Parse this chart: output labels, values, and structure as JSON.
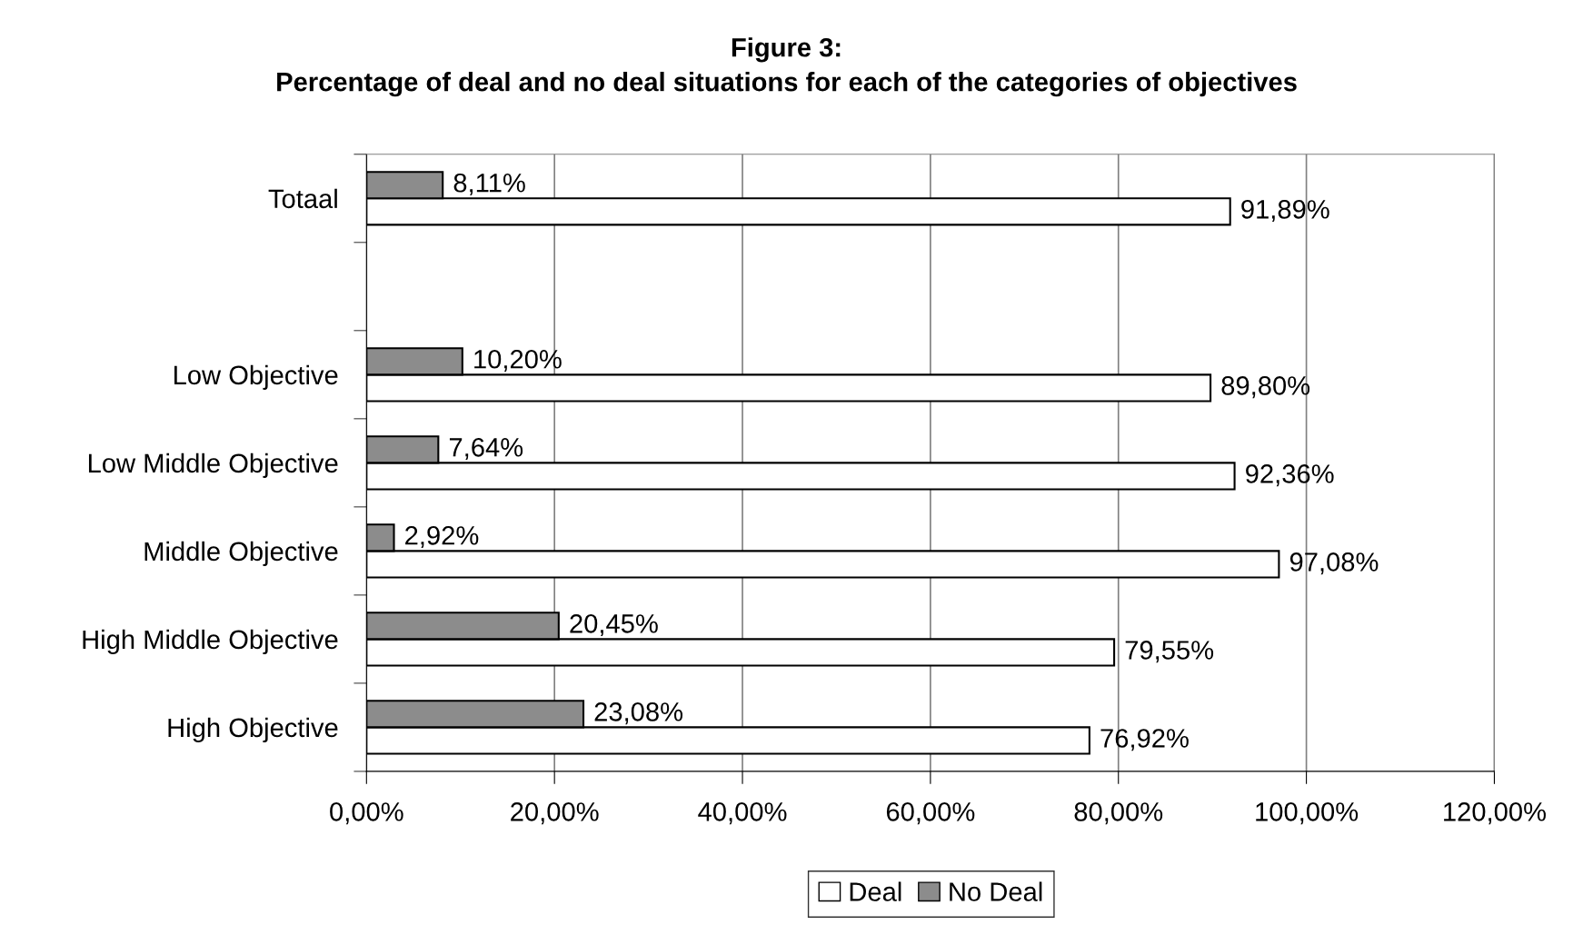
{
  "chart_data": {
    "type": "bar",
    "orientation": "horizontal",
    "title": "Figure 3:\nPercentage of deal and no deal situations for each of the categories of objectives",
    "categories": [
      "Totaal",
      null,
      "Low Objective",
      "Low Middle Objective",
      "Middle Objective",
      "High Middle Objective",
      "High Objective"
    ],
    "series": [
      {
        "name": "Deal",
        "color": "#ffffff",
        "values": [
          91.89,
          null,
          89.8,
          92.36,
          97.08,
          79.55,
          76.92
        ],
        "value_labels": [
          "91,89%",
          null,
          "89,80%",
          "92,36%",
          "97,08%",
          "79,55%",
          "76,92%"
        ]
      },
      {
        "name": "No Deal",
        "color": "#8c8c8c",
        "values": [
          8.11,
          null,
          10.2,
          7.64,
          2.92,
          20.45,
          23.08
        ],
        "value_labels": [
          "8,11%",
          null,
          "10,20%",
          "7,64%",
          "2,92%",
          "20,45%",
          "23,08%"
        ]
      }
    ],
    "xlim": [
      0,
      120
    ],
    "xticks": [
      {
        "value": 0,
        "label": "0,00%"
      },
      {
        "value": 20,
        "label": "20,00%"
      },
      {
        "value": 40,
        "label": "40,00%"
      },
      {
        "value": 60,
        "label": "60,00%"
      },
      {
        "value": 80,
        "label": "80,00%"
      },
      {
        "value": 100,
        "label": "100,00%"
      },
      {
        "value": 120,
        "label": "120,00%"
      }
    ],
    "grid": "x",
    "legend": "bottom"
  }
}
